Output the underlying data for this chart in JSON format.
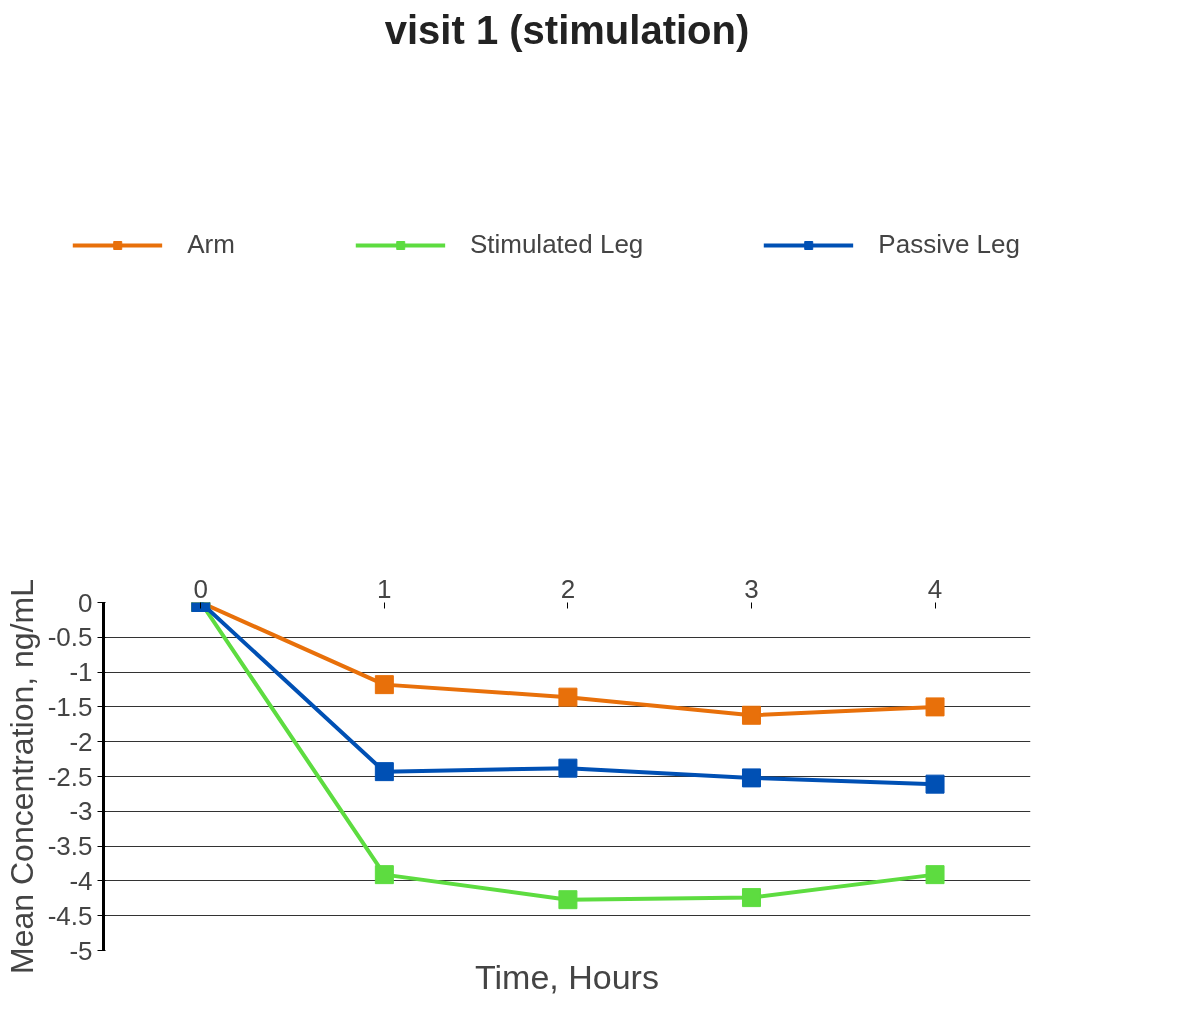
{
  "chart_data": {
    "type": "line",
    "title": "visit 1 (stimulation)",
    "xlabel": "Time, Hours",
    "ylabel": "Mean Concentration, ng/mL",
    "x": [
      0,
      1,
      2,
      3,
      4
    ],
    "series": [
      {
        "name": "Arm",
        "color": "#e8700a",
        "values": [
          0,
          -1.18,
          -1.36,
          -1.62,
          -1.5
        ]
      },
      {
        "name": "Stimulated Leg",
        "color": "#5ddc40",
        "values": [
          0,
          -3.91,
          -4.27,
          -4.24,
          -3.91
        ]
      },
      {
        "name": "Passive Leg",
        "color": "#0050b4",
        "values": [
          0,
          -2.43,
          -2.38,
          -2.52,
          -2.61
        ]
      }
    ],
    "xlim": [
      -0.53,
      4.52
    ],
    "xticks": [
      0,
      1,
      2,
      3,
      4
    ],
    "ylim": [
      -5,
      0
    ],
    "yticks": [
      0,
      -0.5,
      -1,
      -1.5,
      -2,
      -2.5,
      -3,
      -3.5,
      -4,
      -4.5,
      -5
    ],
    "grid": "y",
    "legend": "top",
    "marker": "square",
    "line_style": "solid"
  }
}
